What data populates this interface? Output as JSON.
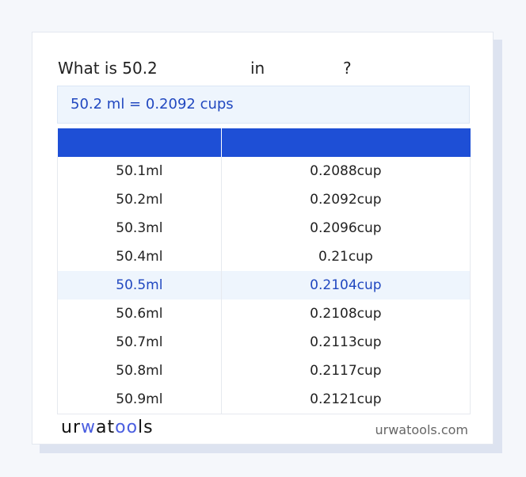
{
  "heading": {
    "prefix": "What is 50.2",
    "middle": "in",
    "suffix": "?"
  },
  "result": "50.2 ml = 0.2092 cups",
  "table": {
    "headers": [
      "",
      ""
    ],
    "rows": [
      [
        "50.1ml",
        "0.2088cup"
      ],
      [
        "50.2ml",
        "0.2092cup"
      ],
      [
        "50.3ml",
        "0.2096cup"
      ],
      [
        "50.4ml",
        "0.21cup"
      ],
      [
        "50.5ml",
        "0.2104cup"
      ],
      [
        "50.6ml",
        "0.2108cup"
      ],
      [
        "50.7ml",
        "0.2113cup"
      ],
      [
        "50.8ml",
        "0.2117cup"
      ],
      [
        "50.9ml",
        "0.2121cup"
      ]
    ],
    "highlighted_row": 4
  },
  "footer": {
    "logo": "urwatools",
    "site": "urwatools.com"
  },
  "colors": {
    "accent": "#1e4fd6",
    "highlight_text": "#2148c0",
    "highlight_bg": "#eef5fd"
  }
}
